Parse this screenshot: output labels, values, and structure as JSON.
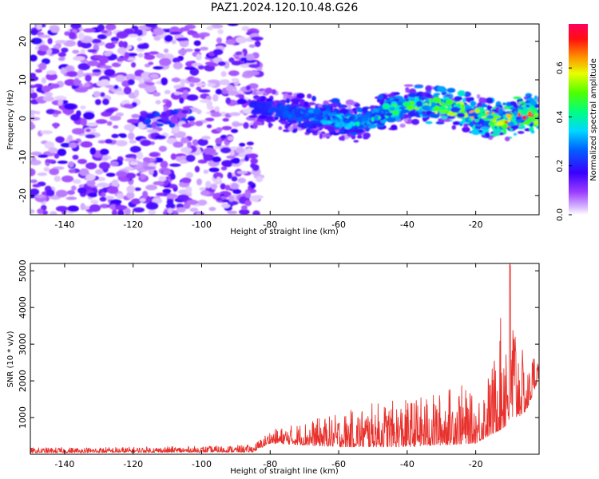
{
  "title": "PAZ1.2024.120.10.48.G26",
  "chart_data": [
    {
      "type": "heatmap",
      "xlabel": "Height of straight line (km)",
      "ylabel": "Frequency (Hz)",
      "xlim": [
        -150,
        -1.5
      ],
      "ylim": [
        -25,
        24.5
      ],
      "x_ticks": [
        -140,
        -120,
        -100,
        -80,
        -60,
        -40,
        -20
      ],
      "y_ticks": [
        -20,
        -10,
        0,
        10,
        20
      ],
      "colorbar": {
        "label": "Normalized spectral amplitude",
        "range": [
          0,
          0.78
        ],
        "ticks": [
          0.0,
          0.2,
          0.4,
          0.6
        ],
        "colormap": "gist_rainbow_r",
        "low_cutoff_color": "#ffffff"
      },
      "regions": [
        {
          "description": "broadband noise",
          "x_range": [
            -150,
            -83
          ],
          "y_range": [
            -25,
            24.5
          ],
          "amplitude_range": [
            0.02,
            0.18
          ]
        },
        {
          "description": "weak signal blob",
          "x_range": [
            -117,
            -103
          ],
          "y_center": 0,
          "amplitude_peak": 0.25
        },
        {
          "description": "signal band",
          "x_range": [
            -85,
            -1.5
          ],
          "ridge_freq": [
            [
              -85,
              3
            ],
            [
              -70,
              1
            ],
            [
              -55,
              -1
            ],
            [
              -45,
              2
            ],
            [
              -38,
              4
            ],
            [
              -28,
              3
            ],
            [
              -20,
              1
            ],
            [
              -12,
              -1
            ],
            [
              -5,
              2
            ],
            [
              -1.5,
              0
            ]
          ],
          "amplitude_growth": [
            0.2,
            0.78
          ]
        }
      ]
    },
    {
      "type": "line",
      "xlabel": "Height of straight line (km)",
      "ylabel": "SNR (10 * v/v)",
      "xlim": [
        -150,
        -1.5
      ],
      "ylim": [
        0,
        5200
      ],
      "x_ticks": [
        -140,
        -120,
        -100,
        -80,
        -60,
        -40,
        -20
      ],
      "y_ticks": [
        1000,
        2000,
        3000,
        4000,
        5000
      ],
      "series": [
        {
          "color": "#e8312c",
          "envelope": [
            [
              -150,
              180
            ],
            [
              -120,
              200
            ],
            [
              -100,
              220
            ],
            [
              -85,
              260
            ],
            [
              -80,
              650
            ],
            [
              -70,
              900
            ],
            [
              -60,
              1100
            ],
            [
              -50,
              1400
            ],
            [
              -40,
              1500
            ],
            [
              -30,
              1700
            ],
            [
              -25,
              2000
            ],
            [
              -20,
              1500
            ],
            [
              -15,
              2500
            ],
            [
              -10,
              5200
            ],
            [
              -8,
              3600
            ],
            [
              -5,
              2200
            ],
            [
              -3,
              2900
            ],
            [
              -1.5,
              2600
            ]
          ],
          "baseline": [
            [
              -150,
              40
            ],
            [
              -85,
              60
            ],
            [
              -80,
              300
            ],
            [
              -60,
              200
            ],
            [
              -40,
              200
            ],
            [
              -20,
              300
            ],
            [
              -12,
              700
            ],
            [
              -5,
              1200
            ],
            [
              -1.5,
              2100
            ]
          ]
        }
      ]
    }
  ]
}
